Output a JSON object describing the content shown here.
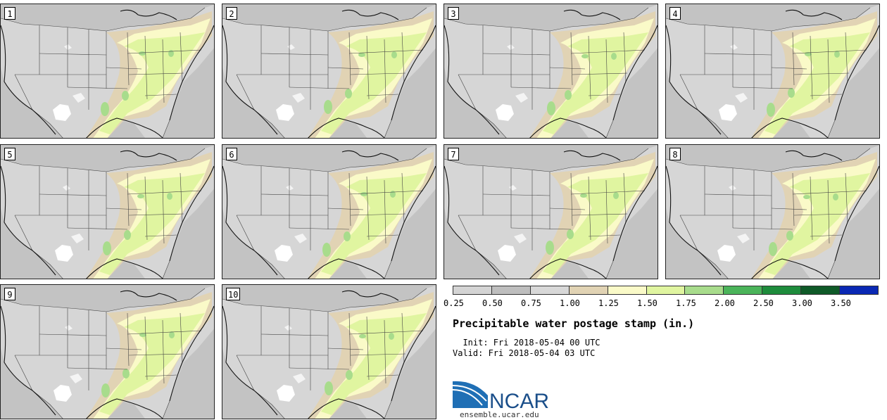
{
  "stamps": [
    {
      "label": "1"
    },
    {
      "label": "2"
    },
    {
      "label": "3"
    },
    {
      "label": "4"
    },
    {
      "label": "5"
    },
    {
      "label": "6"
    },
    {
      "label": "7"
    },
    {
      "label": "8"
    },
    {
      "label": "9"
    },
    {
      "label": "10"
    }
  ],
  "colorbar": {
    "colors": [
      "#d4d4d4",
      "#bebebe",
      "#d8d8d8",
      "#e1d3b4",
      "#fafac8",
      "#e0f5a0",
      "#a8dc8c",
      "#4bb45a",
      "#1e8c3c",
      "#0f5a28",
      "#0a28b4"
    ],
    "ticks": [
      "0.25",
      "0.50",
      "0.75",
      "1.00",
      "1.25",
      "1.50",
      "1.75",
      "2.00",
      "2.50",
      "3.00",
      "3.50"
    ]
  },
  "title": "Precipitable water postage stamp (in.)",
  "init": "  Init: Fri 2018-05-04 00 UTC",
  "valid": "Valid: Fri 2018-05-04 03 UTC",
  "logo": {
    "text": "NCAR",
    "url": "ensemble.ucar.edu"
  }
}
